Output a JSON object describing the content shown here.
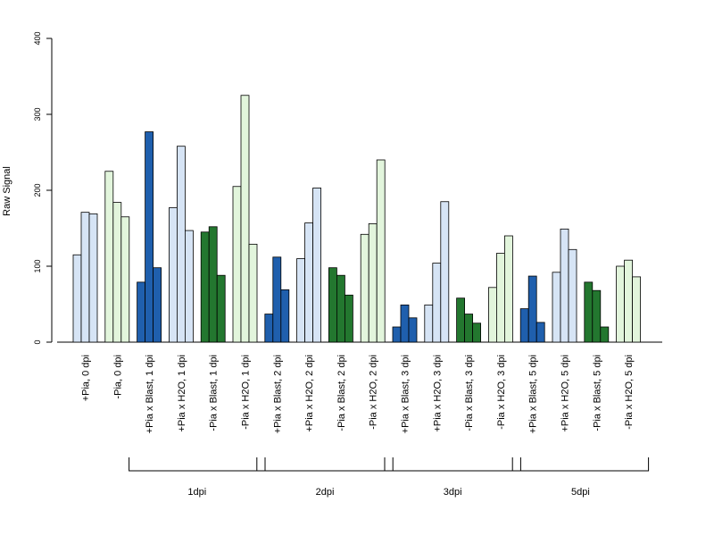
{
  "chart_data": {
    "type": "bar",
    "title": "",
    "xlabel": "",
    "ylabel": "Raw Signal",
    "ylim": [
      0,
      400
    ],
    "yticks": [
      0,
      100,
      200,
      300,
      400
    ],
    "grid": false,
    "legend": false,
    "categories": [
      "+Pia, 0 dpi",
      "-Pia, 0 dpi",
      "+Pia x Blast, 1 dpi",
      "+Pia x H2O, 1 dpi",
      "-Pia x Blast, 1 dpi",
      "-Pia x H2O, 1 dpi",
      "+Pia x Blast, 2 dpi",
      "+Pia x H2O, 2 dpi",
      "-Pia x Blast, 2 dpi",
      "-Pia x H2O, 2 dpi",
      "+Pia x Blast, 3 dpi",
      "+Pia x H2O, 3 dpi",
      "-Pia x Blast, 3 dpi",
      "-Pia x H2O, 3 dpi",
      "+Pia x Blast, 5 dpi",
      "+Pia x H2O, 5 dpi",
      "-Pia x Blast, 5 dpi",
      "-Pia x H2O, 5 dpi"
    ],
    "category_colors": [
      "#d6e4f5",
      "#e2f5dc",
      "#1f5fad",
      "#d6e4f5",
      "#23772f",
      "#e2f5dc",
      "#1f5fad",
      "#d6e4f5",
      "#23772f",
      "#e2f5dc",
      "#1f5fad",
      "#d6e4f5",
      "#23772f",
      "#e2f5dc",
      "#1f5fad",
      "#d6e4f5",
      "#23772f",
      "#e2f5dc"
    ],
    "values": [
      [
        115,
        171,
        169
      ],
      [
        225,
        184,
        165
      ],
      [
        79,
        277,
        98
      ],
      [
        177,
        258,
        147
      ],
      [
        145,
        152,
        88
      ],
      [
        205,
        325,
        129
      ],
      [
        37,
        112,
        69
      ],
      [
        110,
        157,
        203
      ],
      [
        98,
        88,
        62
      ],
      [
        142,
        156,
        240
      ],
      [
        20,
        49,
        32
      ],
      [
        49,
        104,
        185
      ],
      [
        58,
        37,
        25
      ],
      [
        72,
        117,
        140
      ],
      [
        44,
        87,
        26
      ],
      [
        92,
        149,
        122
      ],
      [
        79,
        68,
        20
      ],
      [
        100,
        108,
        86
      ]
    ],
    "groups": [
      {
        "label": "1dpi",
        "first_category": 2,
        "last_category": 5
      },
      {
        "label": "2dpi",
        "first_category": 6,
        "last_category": 9
      },
      {
        "label": "3dpi",
        "first_category": 10,
        "last_category": 13
      },
      {
        "label": "5dpi",
        "first_category": 14,
        "last_category": 17
      }
    ]
  }
}
